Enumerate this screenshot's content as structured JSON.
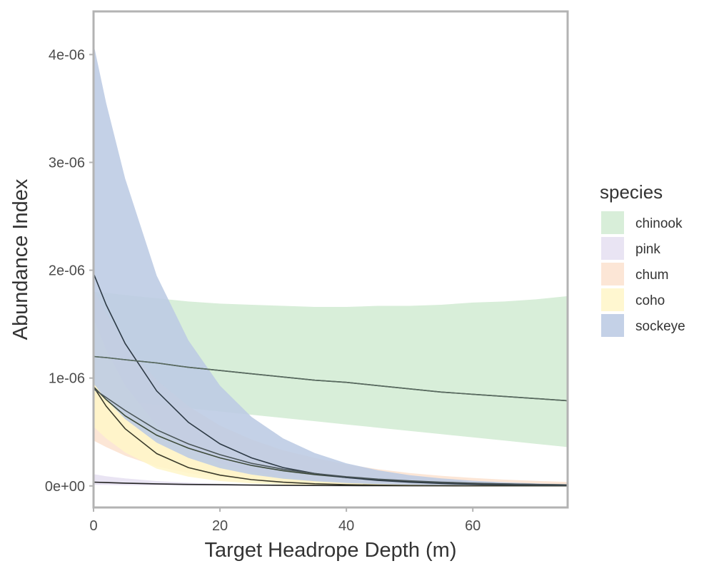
{
  "chart_data": {
    "type": "area",
    "xlabel": "Target Headrope Depth (m)",
    "ylabel": "Abundance Index",
    "xlim": [
      0,
      75
    ],
    "ylim": [
      -2e-07,
      4.4e-06
    ],
    "x_ticks": [
      0,
      20,
      40,
      60
    ],
    "x_tick_labels": [
      "0",
      "20",
      "40",
      "60"
    ],
    "y_ticks": [
      0,
      1e-06,
      2e-06,
      3e-06,
      4e-06
    ],
    "y_tick_labels": [
      "0e+00",
      "1e-06",
      "2e-06",
      "3e-06",
      "4e-06"
    ],
    "grid": false,
    "legend_position": "right",
    "legend_title": "species",
    "x": [
      0,
      2,
      5,
      10,
      15,
      20,
      25,
      30,
      35,
      40,
      45,
      50,
      55,
      60,
      65,
      70,
      75
    ],
    "series": [
      {
        "name": "chinook",
        "color": "#d8eed9",
        "fill_opacity": 1,
        "line_color": "#2f4f3f",
        "mean": [
          1.2e-06,
          1.19e-06,
          1.17e-06,
          1.14e-06,
          1.1e-06,
          1.07e-06,
          1.04e-06,
          1.01e-06,
          9.8e-07,
          9.6e-07,
          9.3e-07,
          9e-07,
          8.7e-07,
          8.5e-07,
          8.3e-07,
          8.1e-07,
          7.9e-07
        ],
        "lower": [
          8.1e-07,
          8e-07,
          7.8e-07,
          7.5e-07,
          7.2e-07,
          6.9e-07,
          6.6e-07,
          6.3e-07,
          6e-07,
          5.7e-07,
          5.4e-07,
          5.1e-07,
          4.8e-07,
          4.5e-07,
          4.2e-07,
          3.9e-07,
          3.6e-07
        ],
        "upper": [
          1.8e-06,
          1.79e-06,
          1.77e-06,
          1.74e-06,
          1.71e-06,
          1.69e-06,
          1.68e-06,
          1.67e-06,
          1.66e-06,
          1.66e-06,
          1.67e-06,
          1.67e-06,
          1.68e-06,
          1.7e-06,
          1.71e-06,
          1.73e-06,
          1.76e-06
        ]
      },
      {
        "name": "pink",
        "color": "#e9e4f3",
        "fill_opacity": 1,
        "line_color": "#222222",
        "mean": [
          3.5e-08,
          3.1e-08,
          2.6e-08,
          1.9e-08,
          1.4e-08,
          1.1e-08,
          8e-09,
          6e-09,
          4e-09,
          3e-09,
          2e-09,
          1.5e-09,
          1e-09,
          8e-10,
          6e-10,
          4e-10,
          3e-10
        ],
        "lower": [
          1e-08,
          9e-09,
          7e-09,
          5e-09,
          3e-09,
          2e-09,
          1.5e-09,
          1e-09,
          7e-10,
          5e-10,
          3e-10,
          2e-10,
          1e-10,
          1e-10,
          1e-10,
          1e-10,
          1e-10
        ],
        "upper": [
          1.1e-07,
          9e-08,
          7e-08,
          4.5e-08,
          3e-08,
          2e-08,
          1.4e-08,
          1e-08,
          7e-09,
          5e-09,
          3.5e-09,
          2.5e-09,
          2e-09,
          1.5e-09,
          1e-09,
          8e-10,
          6e-10
        ]
      },
      {
        "name": "chum",
        "color": "#fbe2cf",
        "fill_opacity": 0.85,
        "line_color": "#3d4a3a",
        "mean": [
          9.2e-07,
          8e-07,
          6.5e-07,
          4.7e-07,
          3.5e-07,
          2.6e-07,
          1.9e-07,
          1.4e-07,
          1.05e-07,
          7.8e-08,
          5.8e-08,
          4.3e-08,
          3.2e-08,
          2.4e-08,
          1.8e-08,
          1.3e-08,
          1e-08
        ],
        "lower": [
          4.2e-07,
          3.6e-07,
          2.8e-07,
          1.8e-07,
          1.2e-07,
          8e-08,
          5.5e-08,
          3.7e-08,
          2.5e-08,
          1.7e-08,
          1.2e-08,
          8e-09,
          6e-09,
          4e-09,
          3e-09,
          2e-09,
          1.5e-09
        ],
        "upper": [
          1.82e-06,
          1.6e-06,
          1.32e-06,
          9.8e-07,
          7.4e-07,
          5.6e-07,
          4.3e-07,
          3.3e-07,
          2.6e-07,
          2e-07,
          1.55e-07,
          1.2e-07,
          9.4e-08,
          7.4e-08,
          5.8e-08,
          4.6e-08,
          3.6e-08
        ]
      },
      {
        "name": "coho",
        "color": "#fff6c8",
        "fill_opacity": 0.85,
        "line_color": "#3a3a2a",
        "mean": [
          9.2e-07,
          7.4e-07,
          5.3e-07,
          3e-07,
          1.7e-07,
          1e-07,
          5.8e-08,
          3.4e-08,
          2e-08,
          1.2e-08,
          7e-09,
          4e-09,
          2.5e-09,
          1.5e-09,
          9e-10,
          5e-10,
          3e-10
        ],
        "lower": [
          5.5e-07,
          4.4e-07,
          3.1e-07,
          1.6e-07,
          8.5e-08,
          4.5e-08,
          2.4e-08,
          1.3e-08,
          7e-09,
          4e-09,
          2e-09,
          1.2e-09,
          7e-10,
          4e-10,
          2e-10,
          1e-10,
          1e-10
        ],
        "upper": [
          1.55e-06,
          1.26e-06,
          9.3e-07,
          5.6e-07,
          3.4e-07,
          2.1e-07,
          1.3e-07,
          8.5e-08,
          5.5e-08,
          3.6e-08,
          2.4e-08,
          1.6e-08,
          1.1e-08,
          7.5e-09,
          5e-09,
          3.5e-09,
          2.4e-09
        ]
      },
      {
        "name": "sockeye",
        "color": "#bccbe4",
        "fill_opacity": 0.88,
        "line_color": "#2d3a45",
        "mean": [
          1.97e-06,
          1.68e-06,
          1.32e-06,
          8.8e-07,
          5.9e-07,
          3.9e-07,
          2.6e-07,
          1.7e-07,
          1.15e-07,
          7.7e-08,
          5.1e-08,
          3.4e-08,
          2.3e-08,
          1.5e-08,
          1e-08,
          7e-09,
          4.5e-09
        ],
        "lower": [
          9.5e-07,
          8e-07,
          6.2e-07,
          4e-07,
          2.6e-07,
          1.65e-07,
          1.05e-07,
          6.7e-08,
          4.3e-08,
          2.7e-08,
          1.7e-08,
          1.1e-08,
          7e-09,
          4.5e-09,
          2.8e-09,
          1.8e-09,
          1.1e-09
        ],
        "upper": [
          4.1e-06,
          3.55e-06,
          2.85e-06,
          1.95e-06,
          1.35e-06,
          9.3e-07,
          6.4e-07,
          4.4e-07,
          3.05e-07,
          2.1e-07,
          1.45e-07,
          1e-07,
          7e-08,
          4.8e-08,
          3.3e-08,
          2.3e-08,
          1.6e-08
        ]
      }
    ],
    "extra_lines": [
      {
        "color": "#5a6a60",
        "mean": [
          1.2e-06,
          1.19e-06,
          1.17e-06,
          1.14e-06,
          1.1e-06,
          1.07e-06,
          1.04e-06,
          1.01e-06,
          9.8e-07,
          9.6e-07,
          9.3e-07,
          9e-07,
          8.7e-07,
          8.5e-07,
          8.3e-07,
          8.1e-07,
          7.9e-07
        ]
      },
      {
        "color": "#4a5558",
        "mean": [
          9e-07,
          8.2e-07,
          7e-07,
          5.2e-07,
          3.9e-07,
          2.9e-07,
          2.1e-07,
          1.55e-07,
          1.15e-07,
          8.5e-08,
          6.3e-08,
          4.7e-08,
          3.5e-08,
          2.6e-08,
          1.9e-08,
          1.4e-08,
          1e-08
        ]
      }
    ]
  }
}
